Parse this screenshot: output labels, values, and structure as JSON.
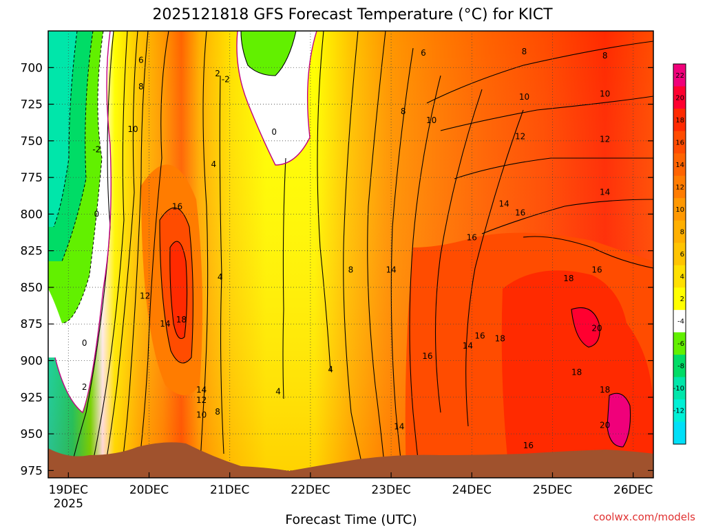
{
  "chart_data": {
    "type": "heatmap",
    "title": "2025121818 GFS Forecast Temperature (°C) for KICT",
    "xlabel": "Forecast Time (UTC)",
    "ylabel": "",
    "credit": "coolwx.com/models",
    "x_ticks": [
      "19DEC",
      "20DEC",
      "21DEC",
      "22DEC",
      "23DEC",
      "24DEC",
      "25DEC",
      "26DEC"
    ],
    "x_year": "2025",
    "y_ticks": [
      700,
      725,
      750,
      775,
      800,
      825,
      850,
      875,
      900,
      925,
      950,
      975
    ],
    "y_range_hpa": [
      675,
      980
    ],
    "x_range_days": [
      18.75,
      26.25
    ],
    "grid": true,
    "colorbar": {
      "labels": [
        "22",
        "20",
        "18",
        "16",
        "14",
        "12",
        "10",
        "8",
        "6",
        "4",
        "2",
        "-4",
        "-6",
        "-8",
        "-10",
        "-12"
      ],
      "colors": [
        "#f0007a",
        "#ff0030",
        "#ff2a00",
        "#ff4c00",
        "#ff6400",
        "#ff7c00",
        "#ff9800",
        "#ffb000",
        "#ffc400",
        "#ffe000",
        "#ffff00",
        "#ffffff",
        "#62f000",
        "#00dc66",
        "#00e6aa",
        "#00f0d6",
        "#00e0f8"
      ]
    },
    "contour_labels": [
      {
        "text": "6",
        "x": 19.9,
        "p": 695
      },
      {
        "text": "8",
        "x": 19.9,
        "p": 713
      },
      {
        "text": "10",
        "x": 19.8,
        "p": 742
      },
      {
        "text": "16",
        "x": 20.35,
        "p": 795
      },
      {
        "text": "12",
        "x": 19.95,
        "p": 856
      },
      {
        "text": "14",
        "x": 20.2,
        "p": 875
      },
      {
        "text": "18",
        "x": 20.4,
        "p": 872
      },
      {
        "text": "14",
        "x": 20.65,
        "p": 920
      },
      {
        "text": "12",
        "x": 20.65,
        "p": 927
      },
      {
        "text": "10",
        "x": 20.65,
        "p": 937
      },
      {
        "text": "8",
        "x": 20.85,
        "p": 935
      },
      {
        "text": "2",
        "x": 20.85,
        "p": 704
      },
      {
        "text": "4",
        "x": 20.8,
        "p": 766
      },
      {
        "text": "4",
        "x": 20.88,
        "p": 843
      },
      {
        "text": "-2",
        "x": 20.95,
        "p": 708
      },
      {
        "text": "0",
        "x": 21.55,
        "p": 744
      },
      {
        "text": "-2",
        "x": 19.35,
        "p": 756
      },
      {
        "text": "0",
        "x": 19.35,
        "p": 800
      },
      {
        "text": "0",
        "x": 19.2,
        "p": 888
      },
      {
        "text": "2",
        "x": 19.2,
        "p": 918
      },
      {
        "text": "4",
        "x": 21.6,
        "p": 921
      },
      {
        "text": "4",
        "x": 22.25,
        "p": 906
      },
      {
        "text": "8",
        "x": 22.5,
        "p": 838
      },
      {
        "text": "14",
        "x": 23.0,
        "p": 838
      },
      {
        "text": "6",
        "x": 23.4,
        "p": 690
      },
      {
        "text": "8",
        "x": 23.15,
        "p": 730
      },
      {
        "text": "10",
        "x": 23.5,
        "p": 736
      },
      {
        "text": "14",
        "x": 23.1,
        "p": 945
      },
      {
        "text": "16",
        "x": 23.45,
        "p": 897
      },
      {
        "text": "14",
        "x": 23.95,
        "p": 890
      },
      {
        "text": "16",
        "x": 24.1,
        "p": 883
      },
      {
        "text": "18",
        "x": 24.35,
        "p": 885
      },
      {
        "text": "8",
        "x": 24.65,
        "p": 689
      },
      {
        "text": "10",
        "x": 24.65,
        "p": 720
      },
      {
        "text": "12",
        "x": 24.6,
        "p": 747
      },
      {
        "text": "14",
        "x": 24.4,
        "p": 793
      },
      {
        "text": "16",
        "x": 24.6,
        "p": 799
      },
      {
        "text": "16",
        "x": 24.0,
        "p": 816
      },
      {
        "text": "18",
        "x": 25.2,
        "p": 844
      },
      {
        "text": "20",
        "x": 25.55,
        "p": 878
      },
      {
        "text": "18",
        "x": 25.3,
        "p": 908
      },
      {
        "text": "18",
        "x": 25.65,
        "p": 920
      },
      {
        "text": "20",
        "x": 25.65,
        "p": 944
      },
      {
        "text": "16",
        "x": 25.55,
        "p": 838
      },
      {
        "text": "14",
        "x": 25.65,
        "p": 785
      },
      {
        "text": "12",
        "x": 25.65,
        "p": 749
      },
      {
        "text": "10",
        "x": 25.65,
        "p": 718
      },
      {
        "text": "8",
        "x": 25.65,
        "p": 692
      },
      {
        "text": "16",
        "x": 24.7,
        "p": 958
      }
    ]
  }
}
